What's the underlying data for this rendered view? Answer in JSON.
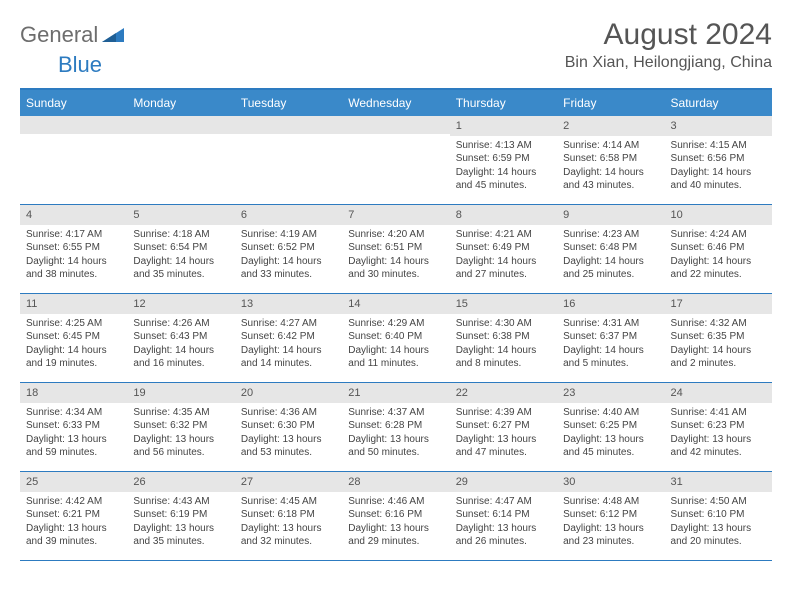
{
  "brand": {
    "general": "General",
    "blue": "Blue"
  },
  "title": "August 2024",
  "location": "Bin Xian, Heilongjiang, China",
  "colors": {
    "header_bg": "#3a89c9",
    "header_text": "#ffffff",
    "border": "#2d7bc0",
    "daynum_bg": "#e6e6e6",
    "text": "#444444",
    "logo_gray": "#6d6d6d",
    "logo_blue": "#2d7bc0",
    "page_bg": "#ffffff"
  },
  "day_labels": [
    "Sunday",
    "Monday",
    "Tuesday",
    "Wednesday",
    "Thursday",
    "Friday",
    "Saturday"
  ],
  "weeks": [
    [
      {
        "n": "",
        "sunrise": "",
        "sunset": "",
        "daylight": ""
      },
      {
        "n": "",
        "sunrise": "",
        "sunset": "",
        "daylight": ""
      },
      {
        "n": "",
        "sunrise": "",
        "sunset": "",
        "daylight": ""
      },
      {
        "n": "",
        "sunrise": "",
        "sunset": "",
        "daylight": ""
      },
      {
        "n": "1",
        "sunrise": "Sunrise: 4:13 AM",
        "sunset": "Sunset: 6:59 PM",
        "daylight": "Daylight: 14 hours and 45 minutes."
      },
      {
        "n": "2",
        "sunrise": "Sunrise: 4:14 AM",
        "sunset": "Sunset: 6:58 PM",
        "daylight": "Daylight: 14 hours and 43 minutes."
      },
      {
        "n": "3",
        "sunrise": "Sunrise: 4:15 AM",
        "sunset": "Sunset: 6:56 PM",
        "daylight": "Daylight: 14 hours and 40 minutes."
      }
    ],
    [
      {
        "n": "4",
        "sunrise": "Sunrise: 4:17 AM",
        "sunset": "Sunset: 6:55 PM",
        "daylight": "Daylight: 14 hours and 38 minutes."
      },
      {
        "n": "5",
        "sunrise": "Sunrise: 4:18 AM",
        "sunset": "Sunset: 6:54 PM",
        "daylight": "Daylight: 14 hours and 35 minutes."
      },
      {
        "n": "6",
        "sunrise": "Sunrise: 4:19 AM",
        "sunset": "Sunset: 6:52 PM",
        "daylight": "Daylight: 14 hours and 33 minutes."
      },
      {
        "n": "7",
        "sunrise": "Sunrise: 4:20 AM",
        "sunset": "Sunset: 6:51 PM",
        "daylight": "Daylight: 14 hours and 30 minutes."
      },
      {
        "n": "8",
        "sunrise": "Sunrise: 4:21 AM",
        "sunset": "Sunset: 6:49 PM",
        "daylight": "Daylight: 14 hours and 27 minutes."
      },
      {
        "n": "9",
        "sunrise": "Sunrise: 4:23 AM",
        "sunset": "Sunset: 6:48 PM",
        "daylight": "Daylight: 14 hours and 25 minutes."
      },
      {
        "n": "10",
        "sunrise": "Sunrise: 4:24 AM",
        "sunset": "Sunset: 6:46 PM",
        "daylight": "Daylight: 14 hours and 22 minutes."
      }
    ],
    [
      {
        "n": "11",
        "sunrise": "Sunrise: 4:25 AM",
        "sunset": "Sunset: 6:45 PM",
        "daylight": "Daylight: 14 hours and 19 minutes."
      },
      {
        "n": "12",
        "sunrise": "Sunrise: 4:26 AM",
        "sunset": "Sunset: 6:43 PM",
        "daylight": "Daylight: 14 hours and 16 minutes."
      },
      {
        "n": "13",
        "sunrise": "Sunrise: 4:27 AM",
        "sunset": "Sunset: 6:42 PM",
        "daylight": "Daylight: 14 hours and 14 minutes."
      },
      {
        "n": "14",
        "sunrise": "Sunrise: 4:29 AM",
        "sunset": "Sunset: 6:40 PM",
        "daylight": "Daylight: 14 hours and 11 minutes."
      },
      {
        "n": "15",
        "sunrise": "Sunrise: 4:30 AM",
        "sunset": "Sunset: 6:38 PM",
        "daylight": "Daylight: 14 hours and 8 minutes."
      },
      {
        "n": "16",
        "sunrise": "Sunrise: 4:31 AM",
        "sunset": "Sunset: 6:37 PM",
        "daylight": "Daylight: 14 hours and 5 minutes."
      },
      {
        "n": "17",
        "sunrise": "Sunrise: 4:32 AM",
        "sunset": "Sunset: 6:35 PM",
        "daylight": "Daylight: 14 hours and 2 minutes."
      }
    ],
    [
      {
        "n": "18",
        "sunrise": "Sunrise: 4:34 AM",
        "sunset": "Sunset: 6:33 PM",
        "daylight": "Daylight: 13 hours and 59 minutes."
      },
      {
        "n": "19",
        "sunrise": "Sunrise: 4:35 AM",
        "sunset": "Sunset: 6:32 PM",
        "daylight": "Daylight: 13 hours and 56 minutes."
      },
      {
        "n": "20",
        "sunrise": "Sunrise: 4:36 AM",
        "sunset": "Sunset: 6:30 PM",
        "daylight": "Daylight: 13 hours and 53 minutes."
      },
      {
        "n": "21",
        "sunrise": "Sunrise: 4:37 AM",
        "sunset": "Sunset: 6:28 PM",
        "daylight": "Daylight: 13 hours and 50 minutes."
      },
      {
        "n": "22",
        "sunrise": "Sunrise: 4:39 AM",
        "sunset": "Sunset: 6:27 PM",
        "daylight": "Daylight: 13 hours and 47 minutes."
      },
      {
        "n": "23",
        "sunrise": "Sunrise: 4:40 AM",
        "sunset": "Sunset: 6:25 PM",
        "daylight": "Daylight: 13 hours and 45 minutes."
      },
      {
        "n": "24",
        "sunrise": "Sunrise: 4:41 AM",
        "sunset": "Sunset: 6:23 PM",
        "daylight": "Daylight: 13 hours and 42 minutes."
      }
    ],
    [
      {
        "n": "25",
        "sunrise": "Sunrise: 4:42 AM",
        "sunset": "Sunset: 6:21 PM",
        "daylight": "Daylight: 13 hours and 39 minutes."
      },
      {
        "n": "26",
        "sunrise": "Sunrise: 4:43 AM",
        "sunset": "Sunset: 6:19 PM",
        "daylight": "Daylight: 13 hours and 35 minutes."
      },
      {
        "n": "27",
        "sunrise": "Sunrise: 4:45 AM",
        "sunset": "Sunset: 6:18 PM",
        "daylight": "Daylight: 13 hours and 32 minutes."
      },
      {
        "n": "28",
        "sunrise": "Sunrise: 4:46 AM",
        "sunset": "Sunset: 6:16 PM",
        "daylight": "Daylight: 13 hours and 29 minutes."
      },
      {
        "n": "29",
        "sunrise": "Sunrise: 4:47 AM",
        "sunset": "Sunset: 6:14 PM",
        "daylight": "Daylight: 13 hours and 26 minutes."
      },
      {
        "n": "30",
        "sunrise": "Sunrise: 4:48 AM",
        "sunset": "Sunset: 6:12 PM",
        "daylight": "Daylight: 13 hours and 23 minutes."
      },
      {
        "n": "31",
        "sunrise": "Sunrise: 4:50 AM",
        "sunset": "Sunset: 6:10 PM",
        "daylight": "Daylight: 13 hours and 20 minutes."
      }
    ]
  ]
}
